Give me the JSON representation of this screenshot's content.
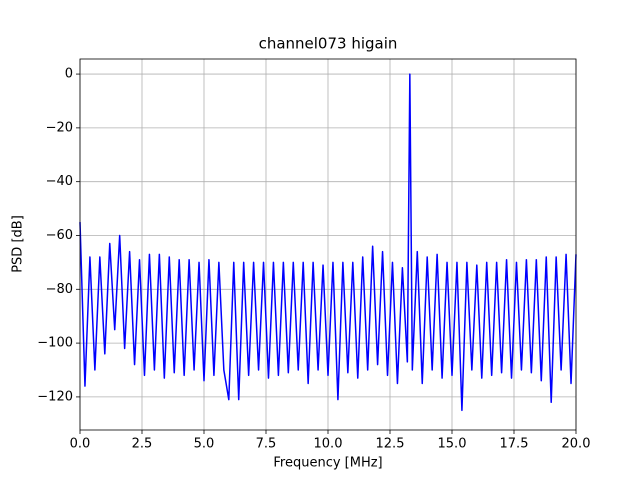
{
  "chart_data": {
    "type": "line",
    "title": "channel073 higain",
    "x_label": "Frequency [MHz]",
    "y_label": "PSD [dB]",
    "x": [
      0,
      0.2,
      0.4,
      0.6,
      0.8,
      1.0,
      1.2,
      1.4,
      1.6,
      1.8,
      2.0,
      2.2,
      2.4,
      2.6,
      2.8,
      3.0,
      3.2,
      3.4,
      3.6,
      3.8,
      4.0,
      4.2,
      4.4,
      4.6,
      4.8,
      5.0,
      5.2,
      5.4,
      5.6,
      5.8,
      6.0,
      6.2,
      6.4,
      6.6,
      6.8,
      7.0,
      7.2,
      7.4,
      7.6,
      7.8,
      8.0,
      8.2,
      8.4,
      8.6,
      8.8,
      9.0,
      9.2,
      9.4,
      9.6,
      9.8,
      10.0,
      10.2,
      10.4,
      10.6,
      10.8,
      11.0,
      11.2,
      11.4,
      11.6,
      11.8,
      12.0,
      12.2,
      12.4,
      12.6,
      12.8,
      13.0,
      13.2,
      13.3,
      13.4,
      13.6,
      13.8,
      14.0,
      14.2,
      14.4,
      14.6,
      14.8,
      15.0,
      15.2,
      15.4,
      15.6,
      15.8,
      16.0,
      16.2,
      16.4,
      16.6,
      16.8,
      17.0,
      17.2,
      17.4,
      17.6,
      17.8,
      18.0,
      18.2,
      18.4,
      18.6,
      18.8,
      19.0,
      19.2,
      19.4,
      19.6,
      19.8,
      20.0
    ],
    "series": [
      {
        "color": "#0000ff",
        "values": [
          -55,
          -116,
          -68,
          -110,
          -68,
          -104,
          -63,
          -95,
          -60,
          -102,
          -66,
          -108,
          -69,
          -112,
          -67,
          -110,
          -67,
          -113,
          -68,
          -111,
          -69,
          -112,
          -69,
          -110,
          -70,
          -114,
          -69,
          -112,
          -70,
          -110,
          -121,
          -70,
          -121,
          -70,
          -112,
          -70,
          -110,
          -70,
          -113,
          -70,
          -112,
          -70,
          -111,
          -70,
          -110,
          -70,
          -115,
          -70,
          -110,
          -71,
          -112,
          -70,
          -121,
          -70,
          -111,
          -70,
          -113,
          -68,
          -110,
          -64,
          -108,
          -66,
          -112,
          -70,
          -115,
          -72,
          -107,
          0,
          -110,
          -66,
          -115,
          -68,
          -110,
          -67,
          -113,
          -70,
          -112,
          -70,
          -125,
          -70,
          -110,
          -71,
          -113,
          -70,
          -112,
          -70,
          -111,
          -69,
          -113,
          -70,
          -110,
          -69,
          -111,
          -69,
          -114,
          -68,
          -122,
          -68,
          -110,
          -67,
          -115,
          -67
        ]
      }
    ],
    "xlim": [
      0,
      20
    ],
    "ylim": [
      -132.3,
      5.6
    ],
    "xticks": [
      {
        "value": 0,
        "label": "0.0"
      },
      2.5,
      {
        "value": 5,
        "label": "5.0"
      },
      7.5,
      {
        "value": 10,
        "label": "10.0"
      },
      12.5,
      {
        "value": 15,
        "label": "15.0"
      },
      17.5,
      {
        "value": 20,
        "label": "20.0"
      }
    ],
    "yticks": [
      {
        "value": -120,
        "label": "−120"
      },
      {
        "value": -100,
        "label": "−100"
      },
      {
        "value": -80,
        "label": "−80"
      },
      {
        "value": -60,
        "label": "−60"
      },
      {
        "value": -40,
        "label": "−40"
      },
      {
        "value": -20,
        "label": "−20"
      },
      0
    ],
    "grid": true
  }
}
